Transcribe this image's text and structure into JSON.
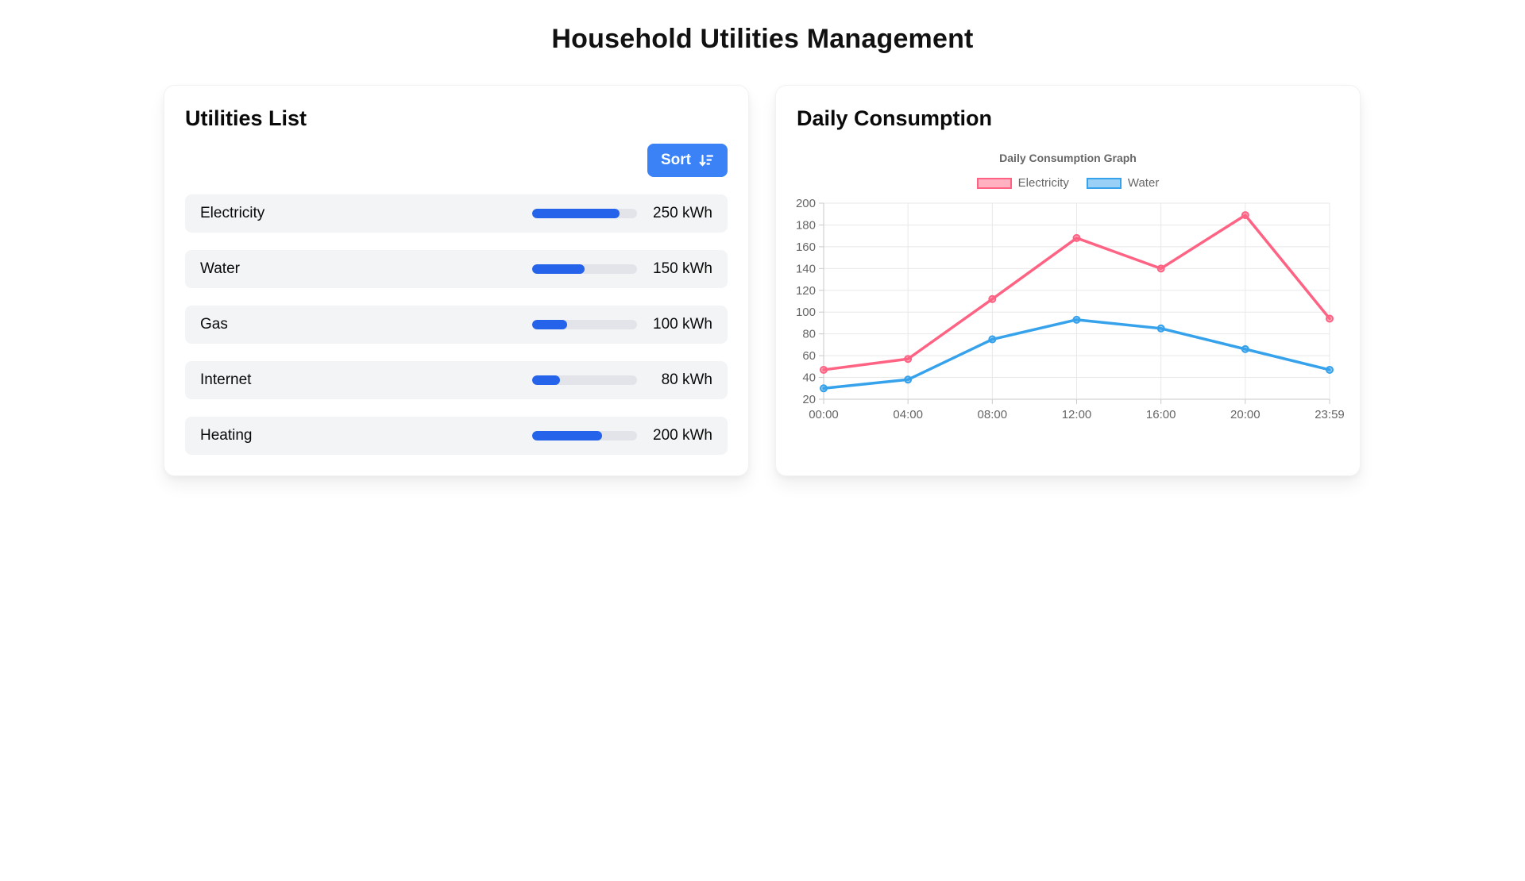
{
  "page": {
    "title": "Household Utilities Management"
  },
  "utilities": {
    "heading": "Utilities List",
    "sort_button": {
      "label": "Sort",
      "icon": "sort-descending-icon",
      "color": "#3b82f6"
    },
    "unit": "kWh",
    "max_value": 300,
    "bar_color": "#2563eb",
    "items": [
      {
        "name": "Electricity",
        "value": 250
      },
      {
        "name": "Water",
        "value": 150
      },
      {
        "name": "Gas",
        "value": 100
      },
      {
        "name": "Internet",
        "value": 80
      },
      {
        "name": "Heating",
        "value": 200
      }
    ]
  },
  "consumption": {
    "heading": "Daily Consumption"
  },
  "chart_data": {
    "type": "line",
    "title": "Daily Consumption Graph",
    "x": [
      "00:00",
      "04:00",
      "08:00",
      "12:00",
      "16:00",
      "20:00",
      "23:59"
    ],
    "series": [
      {
        "name": "Electricity",
        "color": "#ff6384",
        "fill": "rgba(255,99,132,0.5)",
        "values": [
          47,
          57,
          112,
          168,
          140,
          189,
          94
        ]
      },
      {
        "name": "Water",
        "color": "#36a2eb",
        "fill": "rgba(54,162,235,0.5)",
        "values": [
          30,
          38,
          75,
          93,
          85,
          66,
          47
        ]
      }
    ],
    "xlabel": "",
    "ylabel": "",
    "ylim": [
      20,
      200
    ],
    "ytick_step": 20,
    "grid": true,
    "legend_position": "top",
    "tick_color": "#666",
    "grid_color": "#e8e8e8",
    "axis_color": "#c9c9c9"
  }
}
